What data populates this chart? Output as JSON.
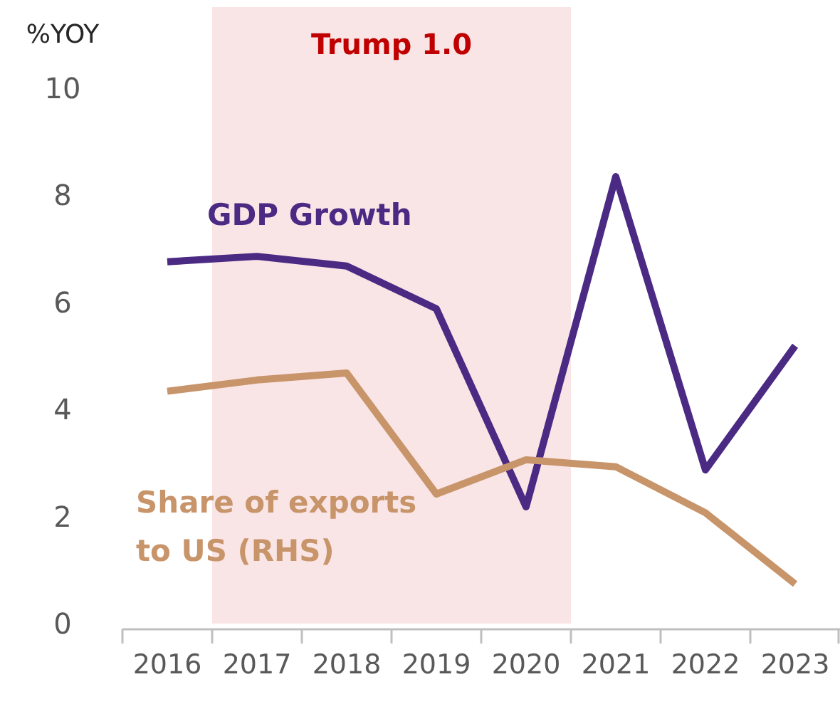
{
  "chart_data": {
    "type": "line",
    "ylabel": "%YOY",
    "categories": [
      "2016",
      "2017",
      "2018",
      "2019",
      "2020",
      "2021",
      "2022",
      "2023"
    ],
    "ylim": [
      0,
      10
    ],
    "yticks": [
      0,
      2,
      4,
      6,
      8,
      10
    ],
    "grid": false,
    "marker": "none",
    "line_style": "solid",
    "series": [
      {
        "name": "GDP Growth",
        "color": "#4b2a84",
        "values": [
          6.76,
          6.86,
          6.68,
          5.88,
          2.18,
          8.35,
          2.87,
          5.19
        ]
      },
      {
        "name": "Share of exports\nto US (RHS)",
        "color": "#c8946a",
        "values": [
          4.34,
          4.55,
          4.68,
          2.42,
          3.06,
          2.93,
          2.07,
          0.74
        ]
      }
    ],
    "bands": [
      {
        "axis": "x",
        "from": "2017",
        "to": "2020",
        "label": "Trump 1.0",
        "color": "#f9e5e6"
      }
    ]
  }
}
